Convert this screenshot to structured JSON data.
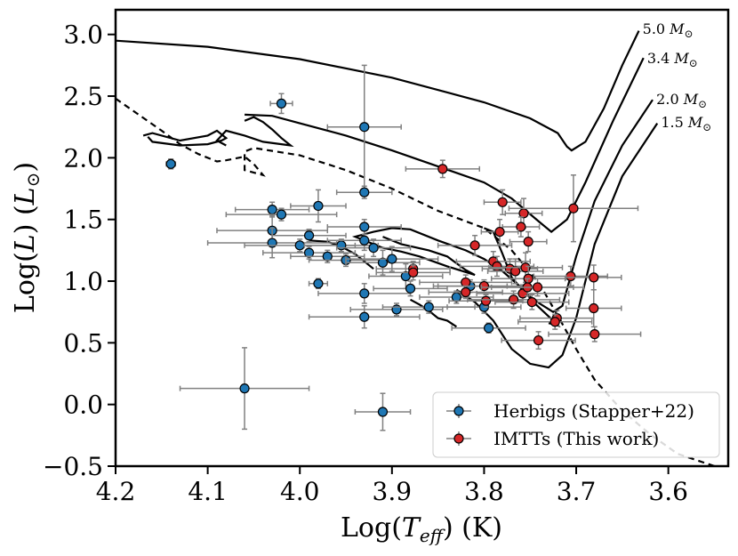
{
  "chart_data": {
    "type": "scatter",
    "title": "",
    "xlabel": "Log(T_eff) (K)",
    "ylabel": "Log(L) (L_⊙)",
    "xlim": [
      4.2,
      3.535
    ],
    "ylim": [
      -0.5,
      3.2
    ],
    "x_reversed": true,
    "grid": false,
    "legend_position": "lower-right",
    "x_ticks": [
      {
        "value": 4.2,
        "label": "4.2"
      },
      {
        "value": 4.1,
        "label": "4.1"
      },
      {
        "value": 4.0,
        "label": "4.0"
      },
      {
        "value": 3.9,
        "label": "3.9"
      },
      {
        "value": 3.8,
        "label": "3.8"
      },
      {
        "value": 3.7,
        "label": "3.7"
      },
      {
        "value": 3.6,
        "label": "3.6"
      }
    ],
    "y_ticks": [
      {
        "value": 3.0,
        "label": "3.0"
      },
      {
        "value": 2.5,
        "label": "2.5"
      },
      {
        "value": 2.0,
        "label": "2.0"
      },
      {
        "value": 1.5,
        "label": "1.5"
      },
      {
        "value": 1.0,
        "label": "1.0"
      },
      {
        "value": 0.5,
        "label": "0.5"
      },
      {
        "value": 0.0,
        "label": "0.0"
      },
      {
        "value": -0.5,
        "label": "−0.5"
      }
    ],
    "axis_text": {
      "xlabel_prefix": "Log(",
      "xlabel_var": "T",
      "xlabel_sub": "eff",
      "xlabel_suffix": ") (K)",
      "ylabel_prefix": "Log(",
      "ylabel_var": "L",
      "ylabel_mid": ") (",
      "ylabel_unit": "L",
      "ylabel_sun": "⊙",
      "ylabel_suffix": ")"
    },
    "tracks": [
      {
        "label": "5.0 M_⊙",
        "label_text": "5.0 ",
        "label_var": "M",
        "label_sun": "⊙",
        "label_at": [
          3.628,
          3.05
        ],
        "points": [
          [
            4.2,
            2.95
          ],
          [
            4.1,
            2.9
          ],
          [
            4.0,
            2.8
          ],
          [
            3.9,
            2.65
          ],
          [
            3.8,
            2.45
          ],
          [
            3.75,
            2.32
          ],
          [
            3.72,
            2.2
          ],
          [
            3.71,
            2.09
          ],
          [
            3.705,
            2.06
          ],
          [
            3.69,
            2.13
          ],
          [
            3.67,
            2.4
          ],
          [
            3.65,
            2.75
          ],
          [
            3.632,
            3.03
          ]
        ]
      },
      {
        "label": "3.4 M_⊙",
        "label_text": "3.4 ",
        "label_var": "M",
        "label_sun": "⊙",
        "label_at": [
          3.623,
          2.81
        ],
        "points": [
          [
            4.06,
            2.35
          ],
          [
            4.03,
            2.34
          ],
          [
            4.0,
            2.28
          ],
          [
            3.95,
            2.18
          ],
          [
            3.9,
            2.06
          ],
          [
            3.85,
            1.93
          ],
          [
            3.8,
            1.8
          ],
          [
            3.77,
            1.67
          ],
          [
            3.74,
            1.48
          ],
          [
            3.727,
            1.4
          ],
          [
            3.71,
            1.5
          ],
          [
            3.69,
            1.8
          ],
          [
            3.66,
            2.3
          ],
          [
            3.627,
            2.81
          ]
        ]
      },
      {
        "label": "2.0 M_⊙",
        "label_text": "2.0 ",
        "label_var": "M",
        "label_sun": "⊙",
        "label_at": [
          3.613,
          2.48
        ],
        "points": [
          [
            3.8,
            1.43
          ],
          [
            3.79,
            1.4
          ],
          [
            3.78,
            1.22
          ],
          [
            3.77,
            1.03
          ],
          [
            3.755,
            0.9
          ],
          [
            3.74,
            0.82
          ],
          [
            3.725,
            0.75
          ],
          [
            3.715,
            0.8
          ],
          [
            3.7,
            1.2
          ],
          [
            3.68,
            1.65
          ],
          [
            3.65,
            2.1
          ],
          [
            3.617,
            2.47
          ]
        ]
      },
      {
        "label": "1.5 M_⊙",
        "label_text": "1.5 ",
        "label_var": "M",
        "label_sun": "⊙",
        "label_at": [
          3.608,
          2.29
        ],
        "points": [
          [
            3.83,
            0.93
          ],
          [
            3.81,
            0.83
          ],
          [
            3.79,
            0.68
          ],
          [
            3.77,
            0.45
          ],
          [
            3.75,
            0.33
          ],
          [
            3.73,
            0.3
          ],
          [
            3.715,
            0.4
          ],
          [
            3.7,
            0.7
          ],
          [
            3.68,
            1.3
          ],
          [
            3.65,
            1.85
          ],
          [
            3.612,
            2.28
          ]
        ]
      }
    ],
    "loops": [
      [
        [
          4.17,
          2.18
        ],
        [
          4.16,
          2.2
        ],
        [
          4.13,
          2.14
        ],
        [
          4.1,
          2.18
        ],
        [
          4.09,
          2.22
        ],
        [
          4.08,
          2.16
        ],
        [
          4.085,
          2.14
        ],
        [
          4.1,
          2.11
        ],
        [
          4.13,
          2.1
        ],
        [
          4.16,
          2.13
        ],
        [
          4.165,
          2.17
        ]
      ],
      [
        [
          4.06,
          2.3
        ],
        [
          4.05,
          2.33
        ],
        [
          4.04,
          2.29
        ],
        [
          4.03,
          2.23
        ],
        [
          4.02,
          2.16
        ],
        [
          4.01,
          2.1
        ],
        [
          4.04,
          2.13
        ],
        [
          4.06,
          2.18
        ],
        [
          4.08,
          2.22
        ],
        [
          4.09,
          2.14
        ],
        [
          4.08,
          2.1
        ]
      ],
      [
        [
          3.91,
          1.36
        ],
        [
          3.89,
          1.3
        ],
        [
          3.86,
          1.25
        ],
        [
          3.84,
          1.2
        ],
        [
          3.82,
          1.09
        ],
        [
          3.81,
          1.05
        ],
        [
          3.84,
          1.12
        ],
        [
          3.87,
          1.2
        ],
        [
          3.89,
          1.24
        ],
        [
          3.91,
          1.27
        ],
        [
          3.94,
          1.36
        ],
        [
          3.92,
          1.4
        ],
        [
          3.9,
          1.43
        ],
        [
          3.88,
          1.42
        ],
        [
          3.85,
          1.33
        ],
        [
          3.82,
          1.25
        ],
        [
          3.8,
          1.18
        ],
        [
          3.78,
          1.08
        ],
        [
          3.76,
          0.95
        ],
        [
          3.745,
          0.82
        ],
        [
          3.725,
          0.68
        ],
        [
          3.72,
          0.64
        ],
        [
          3.73,
          0.66
        ]
      ],
      [
        [
          3.99,
          1.33
        ],
        [
          3.97,
          1.32
        ],
        [
          3.955,
          1.28
        ],
        [
          3.94,
          1.22
        ],
        [
          3.93,
          1.16
        ],
        [
          3.92,
          1.1
        ]
      ],
      [
        [
          3.88,
          0.85
        ],
        [
          3.87,
          0.81
        ],
        [
          3.86,
          0.76
        ],
        [
          3.85,
          0.7
        ],
        [
          3.84,
          0.68
        ],
        [
          3.83,
          0.63
        ]
      ]
    ],
    "zams_line": {
      "points": [
        [
          4.2,
          2.48
        ],
        [
          4.15,
          2.22
        ],
        [
          4.13,
          2.11
        ],
        [
          4.11,
          2.03
        ],
        [
          4.09,
          1.97
        ],
        [
          4.08,
          1.98
        ],
        [
          4.06,
          2.01
        ],
        [
          4.05,
          1.95
        ],
        [
          4.04,
          1.86
        ],
        [
          4.06,
          1.9
        ],
        [
          4.06,
          2.05
        ],
        [
          4.05,
          2.08
        ],
        [
          4.0,
          2.02
        ],
        [
          3.95,
          1.9
        ],
        [
          3.9,
          1.75
        ],
        [
          3.85,
          1.57
        ],
        [
          3.8,
          1.43
        ],
        [
          3.77,
          1.25
        ],
        [
          3.74,
          0.98
        ],
        [
          3.72,
          0.72
        ],
        [
          3.7,
          0.45
        ],
        [
          3.68,
          0.2
        ],
        [
          3.65,
          -0.05
        ],
        [
          3.62,
          -0.24
        ],
        [
          3.59,
          -0.4
        ],
        [
          3.55,
          -0.5
        ]
      ]
    },
    "series": [
      {
        "name": "Herbigs (Stapper+22)",
        "color": "#1f77b4",
        "points": [
          {
            "x": 4.14,
            "y": 1.95,
            "xerr": 0.005,
            "yerr": 0.04
          },
          {
            "x": 4.02,
            "y": 2.44,
            "xerr": 0.012,
            "yerr": 0.08
          },
          {
            "x": 3.93,
            "y": 2.25,
            "xerr": 0.04,
            "yerr": 0.5
          },
          {
            "x": 3.93,
            "y": 1.72,
            "xerr": 0.03,
            "yerr": 0.05
          },
          {
            "x": 4.03,
            "y": 1.58,
            "xerr": 0.04,
            "yerr": 0.06
          },
          {
            "x": 4.02,
            "y": 1.54,
            "xerr": 0.06,
            "yerr": 0.05
          },
          {
            "x": 3.98,
            "y": 1.61,
            "xerr": 0.03,
            "yerr": 0.13
          },
          {
            "x": 4.03,
            "y": 1.41,
            "xerr": 0.06,
            "yerr": 0.12
          },
          {
            "x": 4.03,
            "y": 1.31,
            "xerr": 0.07,
            "yerr": 0.12
          },
          {
            "x": 4.0,
            "y": 1.29,
            "xerr": 0.06,
            "yerr": 0.05
          },
          {
            "x": 3.99,
            "y": 1.23,
            "xerr": 0.05,
            "yerr": 0.05
          },
          {
            "x": 3.99,
            "y": 1.37,
            "xerr": 0.04,
            "yerr": 0.05
          },
          {
            "x": 3.97,
            "y": 1.2,
            "xerr": 0.04,
            "yerr": 0.05
          },
          {
            "x": 3.955,
            "y": 1.29,
            "xerr": 0.04,
            "yerr": 0.05
          },
          {
            "x": 3.95,
            "y": 1.17,
            "xerr": 0.04,
            "yerr": 0.05
          },
          {
            "x": 3.92,
            "y": 1.27,
            "xerr": 0.04,
            "yerr": 0.07
          },
          {
            "x": 3.93,
            "y": 1.33,
            "xerr": 0.04,
            "yerr": 0.08
          },
          {
            "x": 3.93,
            "y": 1.44,
            "xerr": 0.04,
            "yerr": 0.06
          },
          {
            "x": 3.91,
            "y": 1.15,
            "xerr": 0.04,
            "yerr": 0.1
          },
          {
            "x": 3.9,
            "y": 1.18,
            "xerr": 0.05,
            "yerr": 0.1
          },
          {
            "x": 3.885,
            "y": 1.04,
            "xerr": 0.04,
            "yerr": 0.1
          },
          {
            "x": 3.98,
            "y": 0.98,
            "xerr": 0.01,
            "yerr": 0.04
          },
          {
            "x": 3.93,
            "y": 0.9,
            "xerr": 0.05,
            "yerr": 0.08
          },
          {
            "x": 3.895,
            "y": 0.77,
            "xerr": 0.05,
            "yerr": 0.05
          },
          {
            "x": 3.86,
            "y": 0.79,
            "xerr": 0.05,
            "yerr": 0.05
          },
          {
            "x": 3.88,
            "y": 0.94,
            "xerr": 0.04,
            "yerr": 0.06
          },
          {
            "x": 3.93,
            "y": 0.71,
            "xerr": 0.06,
            "yerr": 0.09
          },
          {
            "x": 3.83,
            "y": 0.87,
            "xerr": 0.04,
            "yerr": 0.05
          },
          {
            "x": 3.815,
            "y": 0.96,
            "xerr": 0.04,
            "yerr": 0.05
          },
          {
            "x": 3.8,
            "y": 0.79,
            "xerr": 0.04,
            "yerr": 0.05
          },
          {
            "x": 3.795,
            "y": 0.62,
            "xerr": 0.04,
            "yerr": 0.04
          },
          {
            "x": 4.06,
            "y": 0.13,
            "xerr": 0.07,
            "yerr": 0.33
          },
          {
            "x": 3.91,
            "y": -0.06,
            "xerr": 0.03,
            "yerr": 0.15
          }
        ]
      },
      {
        "name": "IMTTs (This work)",
        "color": "#d62728",
        "points": [
          {
            "x": 3.845,
            "y": 1.91,
            "xerr": 0.04,
            "yerr": 0.07
          },
          {
            "x": 3.78,
            "y": 1.64,
            "xerr": 0.02,
            "yerr": 0.1
          },
          {
            "x": 3.757,
            "y": 1.55,
            "xerr": 0.02,
            "yerr": 0.12
          },
          {
            "x": 3.703,
            "y": 1.59,
            "xerr": 0.07,
            "yerr": 0.27
          },
          {
            "x": 3.76,
            "y": 1.44,
            "xerr": 0.02,
            "yerr": 0.08
          },
          {
            "x": 3.783,
            "y": 1.4,
            "xerr": 0.02,
            "yerr": 0.1
          },
          {
            "x": 3.752,
            "y": 1.32,
            "xerr": 0.02,
            "yerr": 0.08
          },
          {
            "x": 3.81,
            "y": 1.29,
            "xerr": 0.04,
            "yerr": 0.08
          },
          {
            "x": 3.79,
            "y": 1.16,
            "xerr": 0.04,
            "yerr": 0.08
          },
          {
            "x": 3.786,
            "y": 1.12,
            "xerr": 0.04,
            "yerr": 0.08
          },
          {
            "x": 3.772,
            "y": 1.1,
            "xerr": 0.03,
            "yerr": 0.08
          },
          {
            "x": 3.766,
            "y": 1.08,
            "xerr": 0.03,
            "yerr": 0.1
          },
          {
            "x": 3.755,
            "y": 1.11,
            "xerr": 0.04,
            "yerr": 0.12
          },
          {
            "x": 3.752,
            "y": 1.02,
            "xerr": 0.04,
            "yerr": 0.1
          },
          {
            "x": 3.877,
            "y": 1.1,
            "xerr": 0.04,
            "yerr": 0.06
          },
          {
            "x": 3.877,
            "y": 1.07,
            "xerr": 0.04,
            "yerr": 0.06
          },
          {
            "x": 3.82,
            "y": 0.99,
            "xerr": 0.05,
            "yerr": 0.06
          },
          {
            "x": 3.82,
            "y": 0.91,
            "xerr": 0.04,
            "yerr": 0.05
          },
          {
            "x": 3.8,
            "y": 0.96,
            "xerr": 0.05,
            "yerr": 0.05
          },
          {
            "x": 3.798,
            "y": 0.84,
            "xerr": 0.04,
            "yerr": 0.05
          },
          {
            "x": 3.768,
            "y": 0.85,
            "xerr": 0.05,
            "yerr": 0.07
          },
          {
            "x": 3.758,
            "y": 0.9,
            "xerr": 0.05,
            "yerr": 0.07
          },
          {
            "x": 3.753,
            "y": 0.95,
            "xerr": 0.05,
            "yerr": 0.07
          },
          {
            "x": 3.742,
            "y": 0.95,
            "xerr": 0.05,
            "yerr": 0.07
          },
          {
            "x": 3.748,
            "y": 0.83,
            "xerr": 0.04,
            "yerr": 0.06
          },
          {
            "x": 3.706,
            "y": 1.04,
            "xerr": 0.04,
            "yerr": 0.08
          },
          {
            "x": 3.681,
            "y": 1.03,
            "xerr": 0.03,
            "yerr": 0.1
          },
          {
            "x": 3.721,
            "y": 0.7,
            "xerr": 0.04,
            "yerr": 0.06
          },
          {
            "x": 3.723,
            "y": 0.67,
            "xerr": 0.04,
            "yerr": 0.06
          },
          {
            "x": 3.681,
            "y": 0.78,
            "xerr": 0.03,
            "yerr": 0.15
          },
          {
            "x": 3.68,
            "y": 0.57,
            "xerr": 0.05,
            "yerr": 0.06
          },
          {
            "x": 3.741,
            "y": 0.52,
            "xerr": 0.04,
            "yerr": 0.07
          }
        ]
      }
    ]
  }
}
